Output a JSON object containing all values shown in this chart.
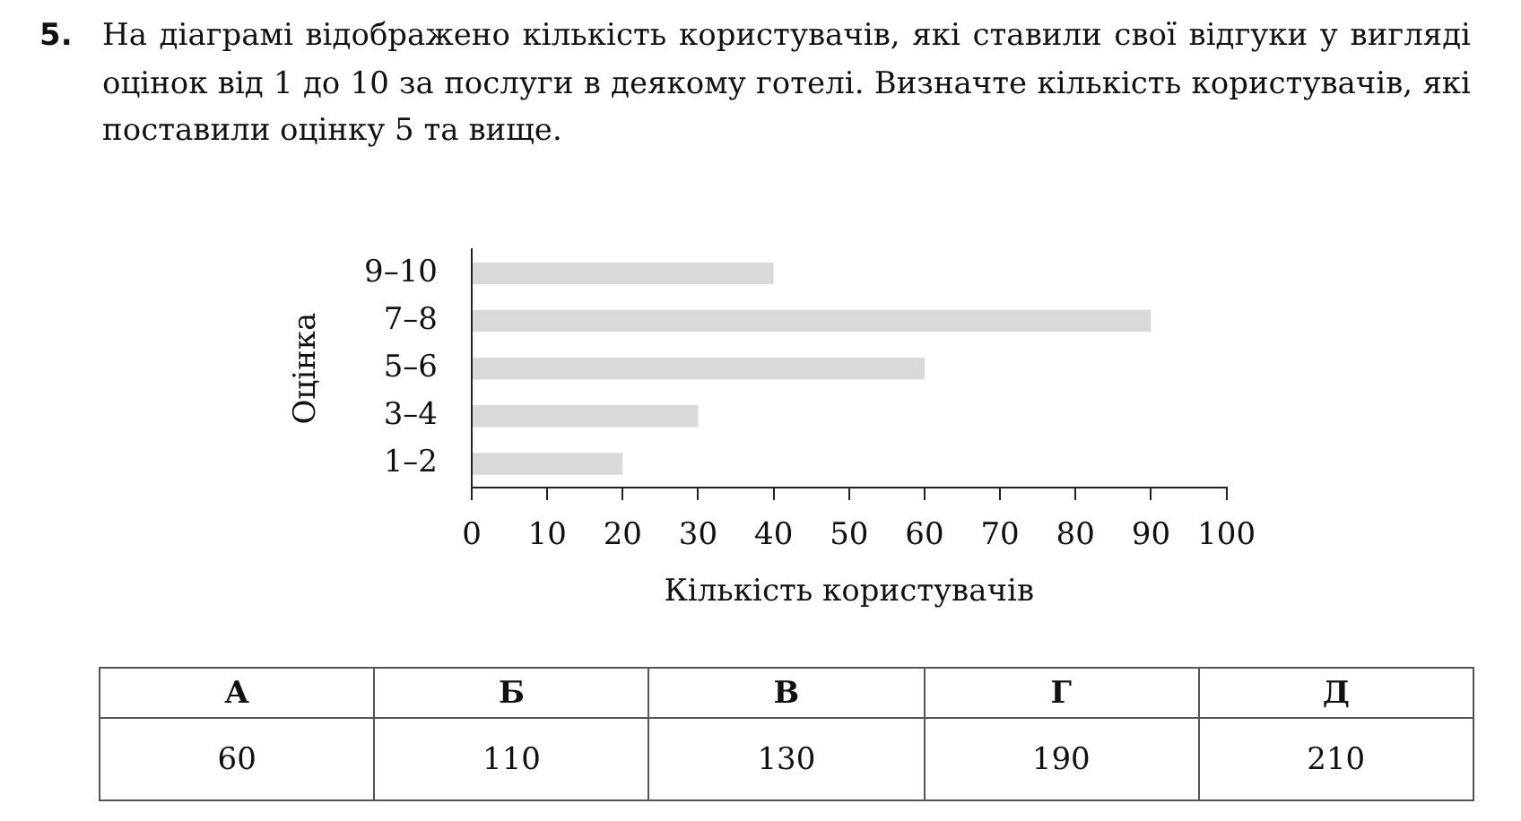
{
  "chart_data": {
    "type": "bar",
    "orientation": "horizontal",
    "title": "5. На діаграмі відображено кількість користувачів, які ставили свої відгуки у вигляді оцінок від 1 до 10 за послуги в деякому готелі. Визначте кількість користувачів, які поставили оцінку 5 та вище.",
    "xlabel": "Кількість користувачів",
    "ylabel": "Оцінка",
    "categories": [
      "9–10",
      "7–8",
      "5–6",
      "3–4",
      "1–2"
    ],
    "values": [
      40,
      90,
      60,
      30,
      20
    ],
    "color": "#d9d9d9",
    "xlim": [
      0,
      100
    ],
    "xticks": [
      0,
      10,
      20,
      30,
      40,
      50,
      60,
      70,
      80,
      90,
      100
    ],
    "annotations": [
      "А",
      "Б",
      "В",
      "Г",
      "Д",
      "60",
      "110",
      "130",
      "190",
      "210"
    ]
  }
}
